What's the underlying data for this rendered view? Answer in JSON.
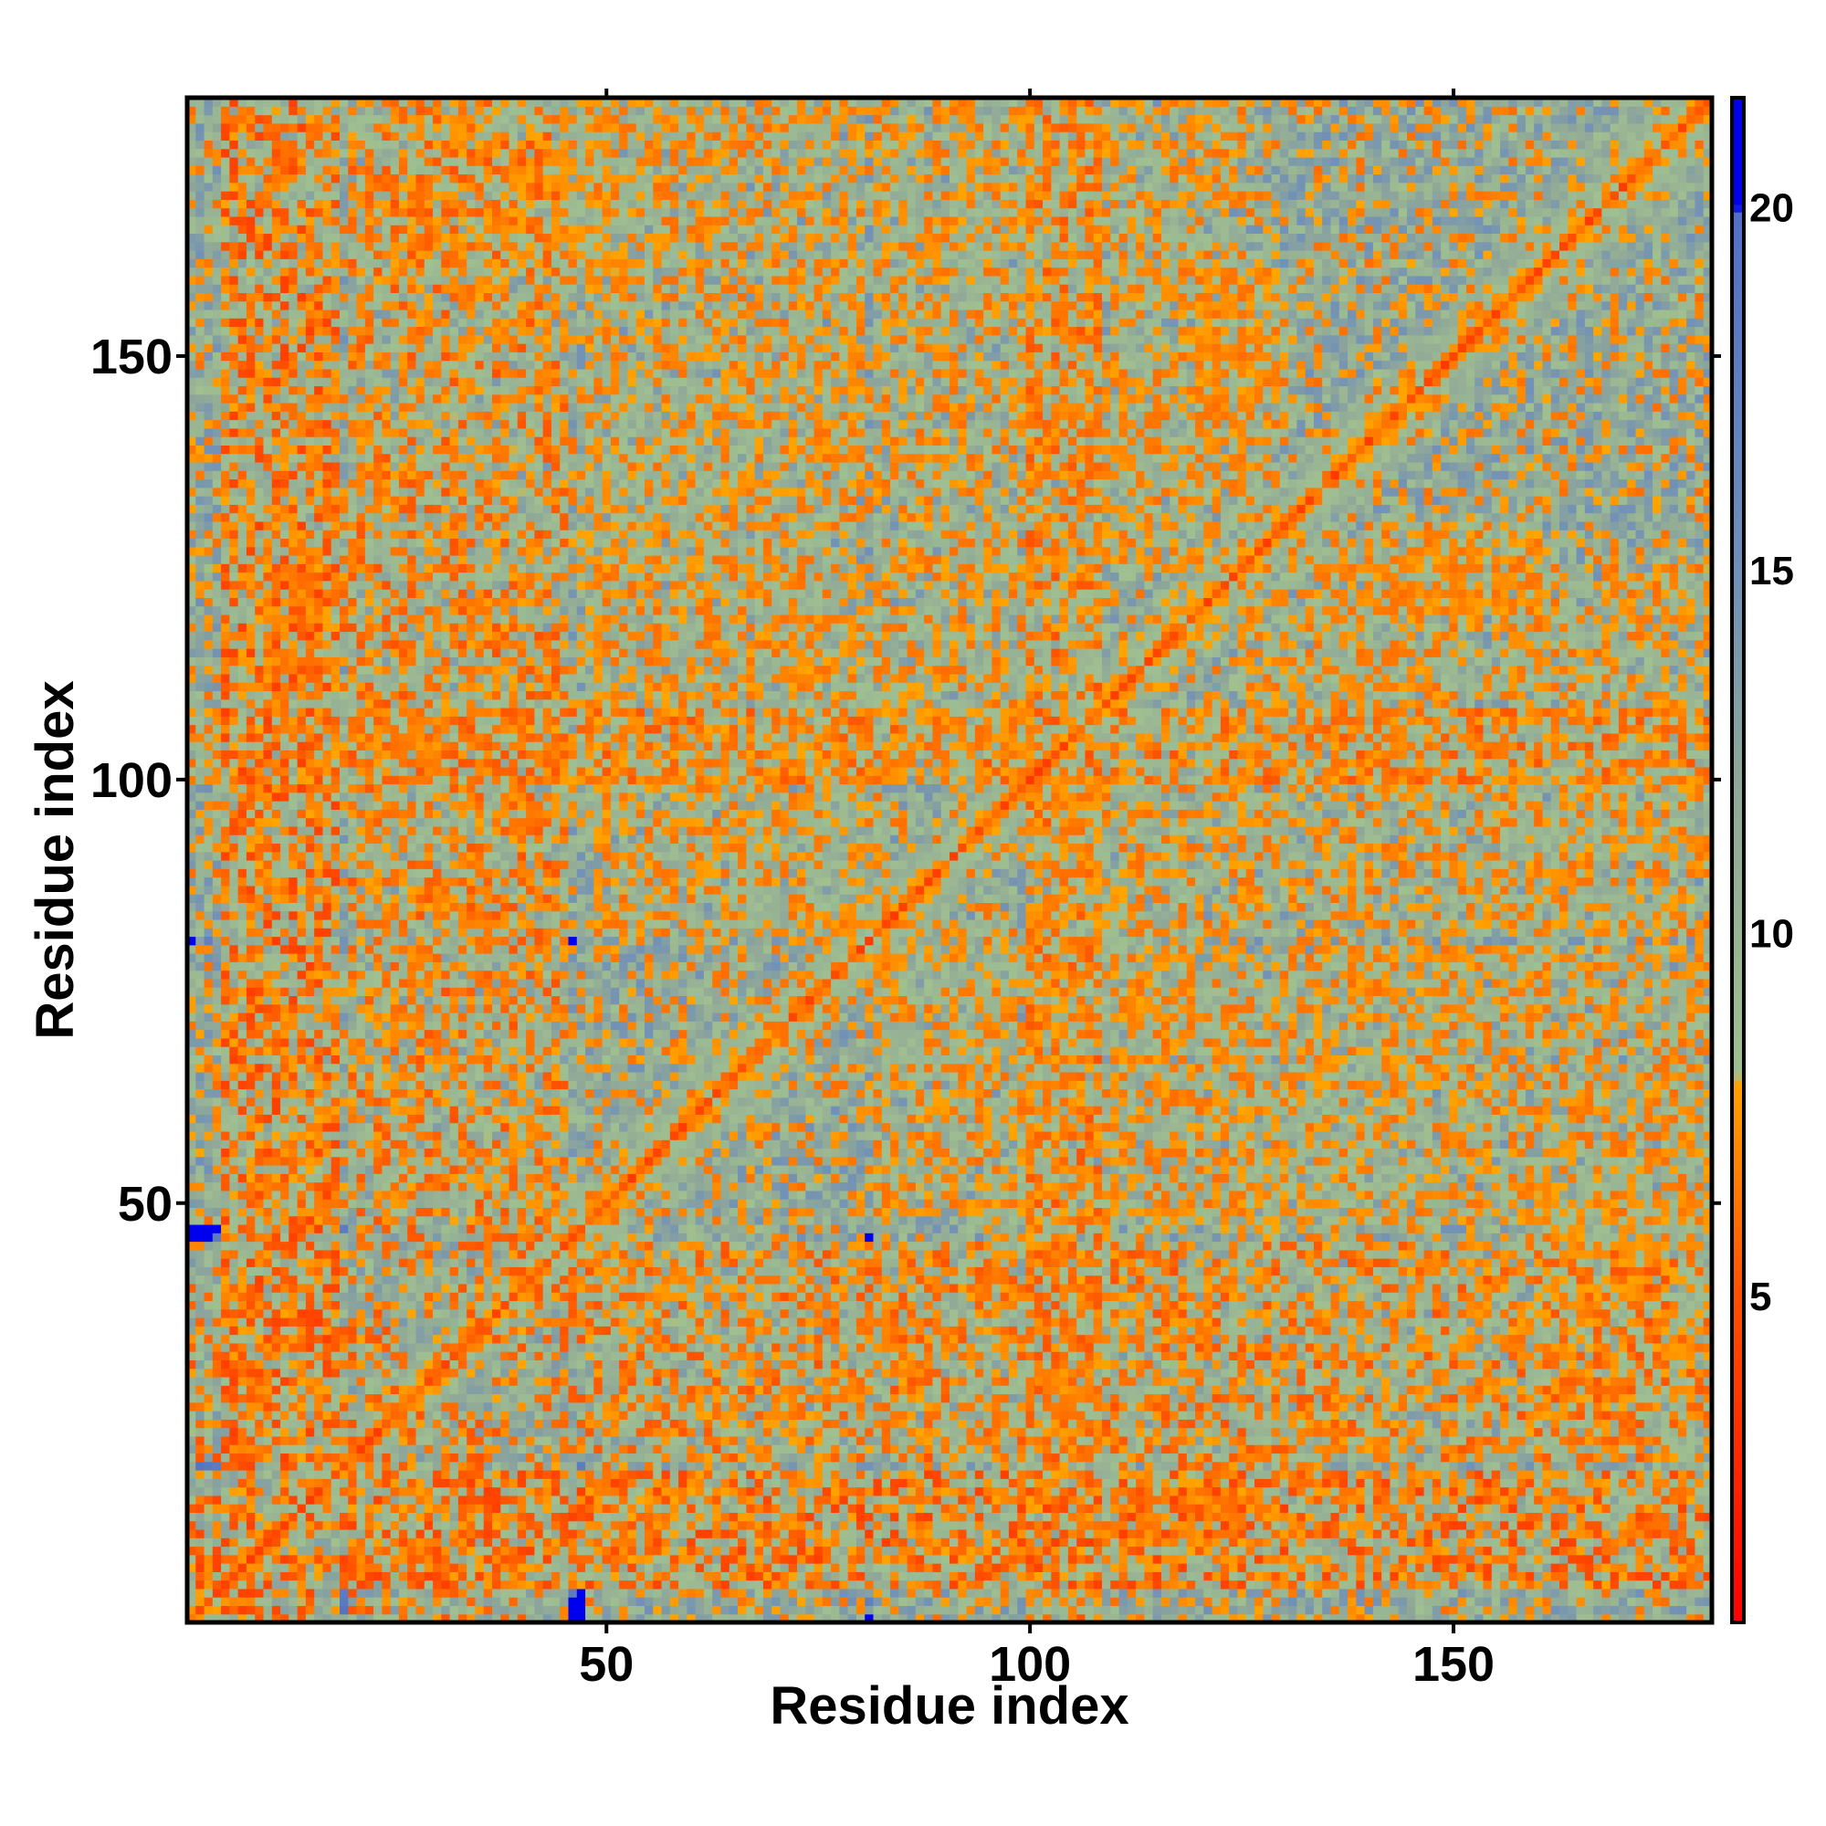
{
  "chart_data": {
    "type": "heatmap",
    "title": "",
    "xlabel": "Residue index",
    "ylabel": "Residue index",
    "n_residues": 180,
    "xlim": [
      1,
      180
    ],
    "ylim": [
      1,
      180
    ],
    "x_ticks": [
      50,
      100,
      150
    ],
    "y_ticks": [
      50,
      100,
      150
    ],
    "colorbar": {
      "ticks": [
        5,
        10,
        15,
        20
      ],
      "range": [
        0.5,
        21.5
      ],
      "stops": [
        {
          "value": 0.5,
          "color": "#ff0000"
        },
        {
          "value": 5,
          "color": "#ff5000"
        },
        {
          "value": 8,
          "color": "#ffa500"
        },
        {
          "value": 8.01,
          "color": "#a0c090"
        },
        {
          "value": 12,
          "color": "#90a898"
        },
        {
          "value": 15,
          "color": "#7090b8"
        },
        {
          "value": 19.9,
          "color": "#5070c8"
        },
        {
          "value": 20,
          "color": "#0000ee"
        },
        {
          "value": 21.5,
          "color": "#0000ee"
        }
      ]
    },
    "description_of_values": "Pairwise residue distances; red/orange on the diagonal and contacts, pale green-grey for intermediate distances, blue for distances of 20 or more",
    "contact_blocks": [
      {
        "x": [
          5,
          18
        ],
        "y": [
          5,
          18
        ],
        "d": 4
      },
      {
        "x": [
          20,
          45
        ],
        "y": [
          20,
          45
        ],
        "d": 5
      },
      {
        "x": [
          48,
          80
        ],
        "y": [
          48,
          80
        ],
        "d": 6
      },
      {
        "x": [
          82,
          100
        ],
        "y": [
          82,
          100
        ],
        "d": 6
      },
      {
        "x": [
          100,
          125
        ],
        "y": [
          100,
          125
        ],
        "d": 6
      },
      {
        "x": [
          125,
          180
        ],
        "y": [
          125,
          180
        ],
        "d": 6
      },
      {
        "x": [
          14,
          20
        ],
        "y": [
          118,
          124
        ],
        "d": 5
      },
      {
        "x": [
          118,
          124
        ],
        "y": [
          14,
          20
        ],
        "d": 5
      },
      {
        "x": [
          48,
          56
        ],
        "y": [
          10,
          18
        ],
        "d": 6
      },
      {
        "x": [
          10,
          18
        ],
        "y": [
          48,
          56
        ],
        "d": 6
      },
      {
        "x": [
          112,
          125
        ],
        "y": [
          10,
          18
        ],
        "d": 6
      },
      {
        "x": [
          10,
          18
        ],
        "y": [
          112,
          125
        ],
        "d": 6
      },
      {
        "x": [
          160,
          175
        ],
        "y": [
          35,
          45
        ],
        "d": 7
      },
      {
        "x": [
          35,
          45
        ],
        "y": [
          160,
          175
        ],
        "d": 7
      },
      {
        "x": [
          100,
          108
        ],
        "y": [
          100,
          108
        ],
        "d": 5
      },
      {
        "x": [
          140,
          160
        ],
        "y": [
          120,
          130
        ],
        "d": 6
      },
      {
        "x": [
          120,
          130
        ],
        "y": [
          140,
          160
        ],
        "d": 6
      },
      {
        "x": [
          30,
          50
        ],
        "y": [
          160,
          178
        ],
        "d": 7
      },
      {
        "x": [
          160,
          178
        ],
        "y": [
          30,
          50
        ],
        "d": 7
      }
    ]
  }
}
